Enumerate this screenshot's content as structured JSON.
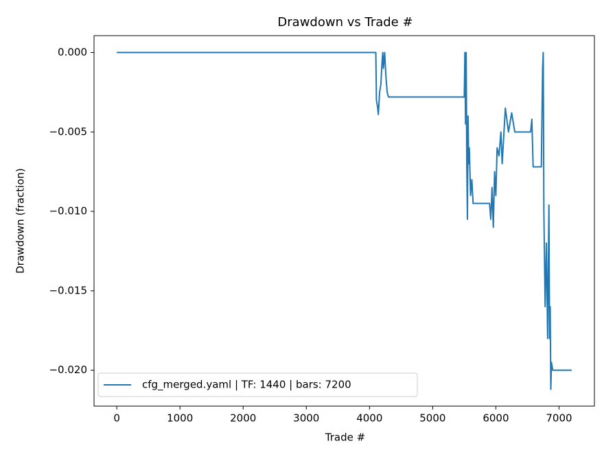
{
  "chart_data": {
    "type": "line",
    "title": "Drawdown vs Trade #",
    "xlabel": "Trade #",
    "ylabel": "Drawdown (fraction)",
    "x": [
      0,
      4100,
      4110,
      4130,
      4140,
      4160,
      4180,
      4200,
      4210,
      4220,
      4240,
      4260,
      4280,
      4300,
      5500,
      5510,
      5520,
      5530,
      5540,
      5550,
      5560,
      5570,
      5580,
      5600,
      5620,
      5640,
      5900,
      5920,
      5940,
      5960,
      5980,
      6000,
      6020,
      6050,
      6080,
      6100,
      6150,
      6200,
      6250,
      6300,
      6550,
      6570,
      6590,
      6720,
      6740,
      6750,
      6760,
      6780,
      6800,
      6820,
      6840,
      6850,
      6860,
      6870,
      6880,
      6900,
      7200
    ],
    "series": [
      {
        "name": "cfg_merged.yaml | TF: 1440 | bars: 7200",
        "color": "#1f77b4",
        "values": [
          0,
          0,
          -0.003,
          -0.0035,
          -0.0039,
          -0.0025,
          -0.002,
          -0.0005,
          0,
          -0.001,
          0,
          -0.0015,
          -0.0025,
          -0.0028,
          -0.0028,
          0,
          -0.0045,
          0,
          -0.007,
          -0.0105,
          -0.004,
          -0.007,
          -0.006,
          -0.009,
          -0.008,
          -0.0095,
          -0.0095,
          -0.0105,
          -0.0085,
          -0.011,
          -0.0075,
          -0.009,
          -0.006,
          -0.0065,
          -0.005,
          -0.007,
          -0.0035,
          -0.005,
          -0.0038,
          -0.005,
          -0.005,
          -0.0042,
          -0.0072,
          -0.0072,
          -0.001,
          0,
          -0.01,
          -0.016,
          -0.012,
          -0.018,
          -0.0096,
          -0.018,
          -0.016,
          -0.0212,
          -0.0195,
          -0.02,
          -0.02
        ]
      }
    ],
    "xlim": [
      -360,
      7560
    ],
    "ylim": [
      -0.02226,
      0.00106
    ],
    "xticks": [
      0,
      1000,
      2000,
      3000,
      4000,
      5000,
      6000,
      7000
    ],
    "yticks": [
      {
        "value": 0,
        "label": "0.000"
      },
      {
        "value": -0.005,
        "label": "−0.005"
      },
      {
        "value": -0.01,
        "label": "−0.010"
      },
      {
        "value": -0.015,
        "label": "−0.015"
      },
      {
        "value": -0.02,
        "label": "−0.020"
      }
    ],
    "grid": false,
    "legend": "lower left"
  }
}
